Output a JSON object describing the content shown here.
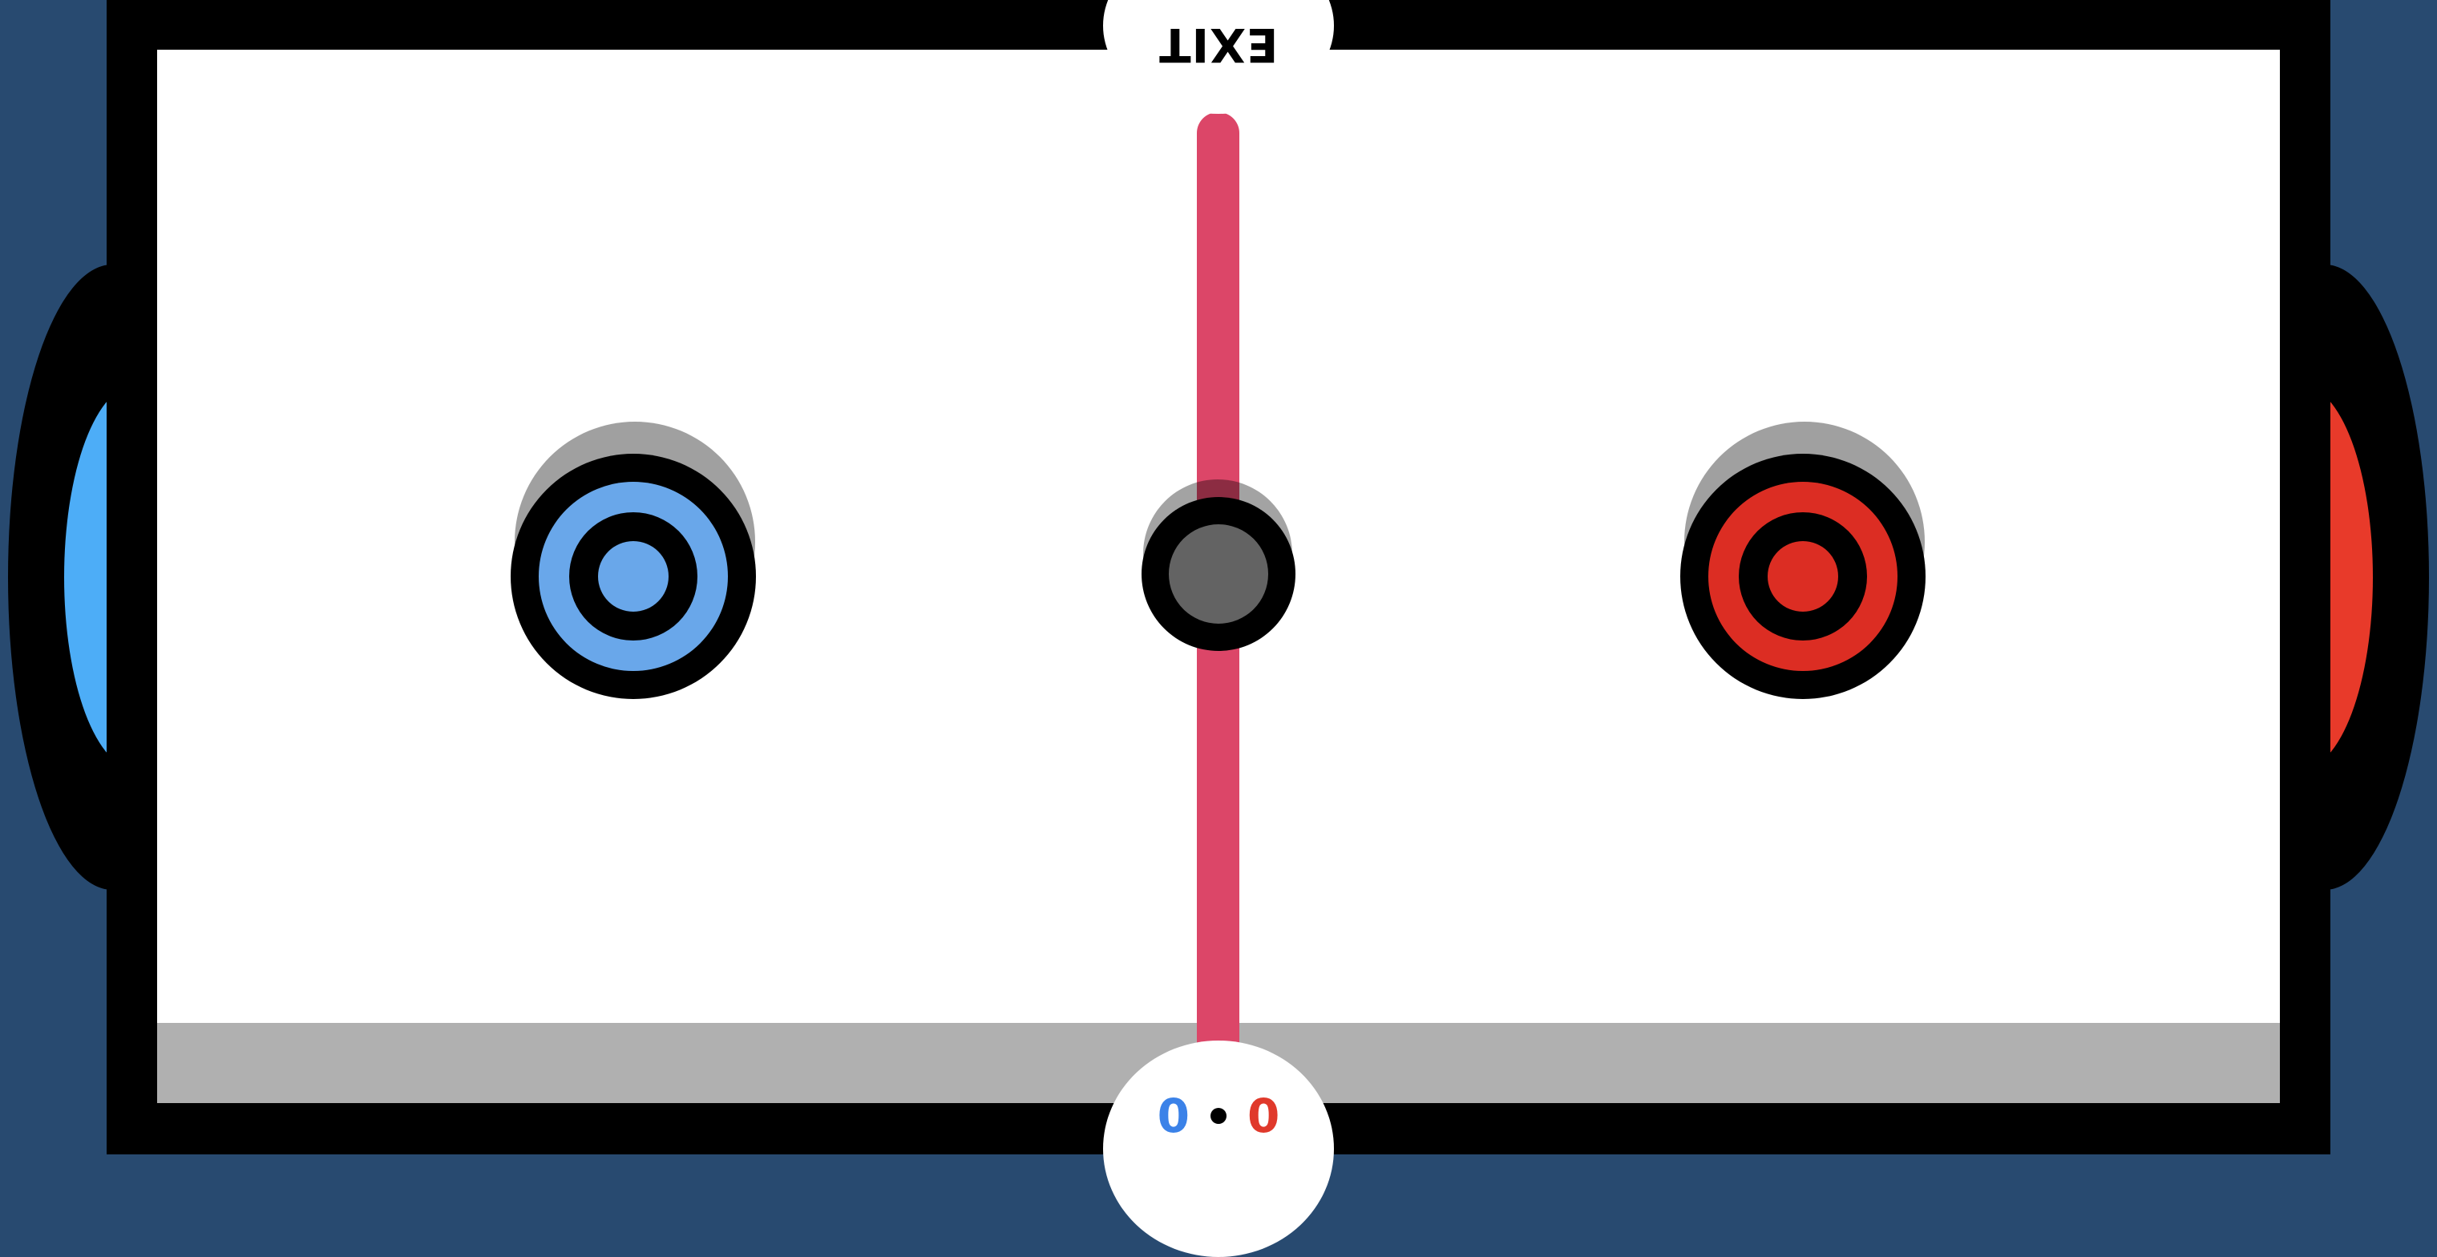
{
  "exit_button": {
    "label": "EXIT"
  },
  "score": {
    "blue": "0",
    "red": "0"
  },
  "colors": {
    "background": "#284a70",
    "rink": "#ffffff",
    "rink_shadow": "#b0b0b0",
    "center_line": "#dc4668",
    "blue_goal": "#4dadf7",
    "red_goal": "#e83a2a",
    "blue_mallet": "#69a7ea",
    "red_mallet": "#dc2d23",
    "puck": "#636363",
    "blue_score": "#3b82e8",
    "red_score": "#e0392b"
  }
}
